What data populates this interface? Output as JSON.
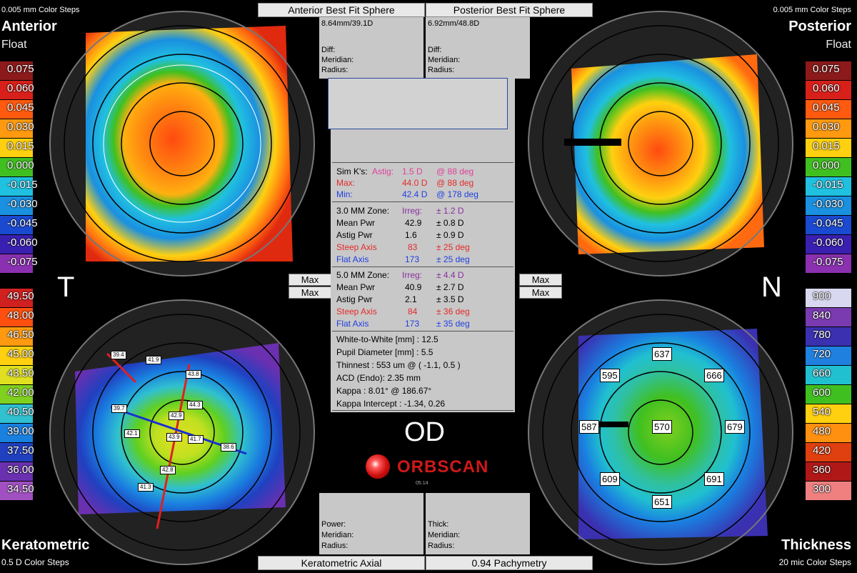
{
  "header": {
    "anterior_bfs_btn": "Anterior Best Fit Sphere",
    "posterior_bfs_btn": "Posterior Best Fit Sphere",
    "anterior_bfs_value": "8.64mm/39.1D",
    "posterior_bfs_value": "6.92mm/48.8D",
    "diff_label": "Diff:",
    "meridian_label": "Meridian:",
    "radius_label": "Radius:"
  },
  "top_left": {
    "steps": "0.005 mm Color Steps",
    "title": "Anterior",
    "subtitle": "Float",
    "scale": [
      "0.075",
      "0.060",
      "0.045",
      "0.030",
      "0.015",
      "0.000",
      "-0.015",
      "-0.030",
      "-0.045",
      "-0.060",
      "-0.075"
    ]
  },
  "top_right": {
    "steps": "0.005 mm Color Steps",
    "title": "Posterior",
    "subtitle": "Float",
    "scale": [
      "0.075",
      "0.060",
      "0.045",
      "0.030",
      "0.015",
      "0.000",
      "-0.015",
      "-0.030",
      "-0.045",
      "-0.060",
      "-0.075"
    ]
  },
  "bottom_left": {
    "title": "Keratometric",
    "steps": "0.5 D Color Steps",
    "scale": [
      "49.50",
      "48.00",
      "46.50",
      "45.00",
      "43.50",
      "42.00",
      "40.50",
      "39.00",
      "37.50",
      "36.00",
      "34.50"
    ],
    "tags": [
      "39.4",
      "41.9",
      "43.8",
      "39.7",
      "44.3",
      "42.9",
      "42.1",
      "43.9",
      "41.7",
      "38.6",
      "42.8",
      "41.3"
    ]
  },
  "bottom_right": {
    "title": "Thickness",
    "steps": "20 mic Color Steps",
    "scale": [
      "900",
      "840",
      "780",
      "720",
      "660",
      "600",
      "540",
      "480",
      "420",
      "360",
      "300"
    ],
    "tags": [
      "637",
      "595",
      "666",
      "587",
      "570",
      "679",
      "609",
      "691",
      "651"
    ]
  },
  "side_letters": {
    "left": "T",
    "right": "N"
  },
  "max_buttons": {
    "label": "Max"
  },
  "footer": {
    "keratometric_axial_btn": "Keratometric Axial",
    "pachymetry_btn": "0.94 Pachymetry",
    "power_label": "Power:",
    "meridian_label": "Meridian:",
    "radius_label": "Radius:",
    "thick_label": "Thick:"
  },
  "eye": "OD",
  "brand": "ORBSCAN",
  "brand_sub": "05.14",
  "summary": {
    "simk_label": "Sim K's:",
    "astig_label": "Astig:",
    "astig_value": "1.5 D",
    "astig_axis": "@ 88 deg",
    "max_label": "Max:",
    "max_value": "44.0 D",
    "max_axis": "@ 88 deg",
    "min_label": "Min:",
    "min_value": "42.4 D",
    "min_axis": "@ 178 deg",
    "zone3": {
      "label": "3.0 MM Zone:",
      "irreg_label": "Irreg:",
      "irreg_value": "± 1.2 D",
      "mean_label": "Mean Pwr",
      "mean_value": "42.9",
      "mean_sd": "± 0.8 D",
      "astig_label": "Astig Pwr",
      "astig_value": "1.6",
      "astig_sd": "± 0.9 D",
      "steep_label": "Steep Axis",
      "steep_value": "83",
      "steep_sd": "± 25 deg",
      "flat_label": "Flat Axis",
      "flat_value": "173",
      "flat_sd": "± 25 deg"
    },
    "zone5": {
      "label": "5.0 MM Zone:",
      "irreg_label": "Irreg:",
      "irreg_value": "± 4.4 D",
      "mean_label": "Mean Pwr",
      "mean_value": "40.9",
      "mean_sd": "± 2.7 D",
      "astig_label": "Astig Pwr",
      "astig_value": "2.1",
      "astig_sd": "± 3.5 D",
      "steep_label": "Steep Axis",
      "steep_value": "84",
      "steep_sd": "± 36 deg",
      "flat_label": "Flat Axis",
      "flat_value": "173",
      "flat_sd": "± 35 deg"
    },
    "wtw": "White-to-White [mm] : 12.5",
    "pupil": "Pupil Diameter [mm] :  5.5",
    "thinnest": "Thinnest : 553 um @ ( -1.1, 0.5 )",
    "acd": "ACD (Endo): 2.35 mm",
    "kappa": "Kappa : 8.01° @ 186.67°",
    "kappa_intercept": "Kappa Intercept : -1.34, 0.26"
  },
  "colors": {
    "float_scale": [
      "#8c1a1a",
      "#d8201a",
      "#ff5a10",
      "#ff9a10",
      "#ffd010",
      "#40c020",
      "#20c0e0",
      "#1a90e0",
      "#1a4ad0",
      "#3a20b0",
      "#8a30b0"
    ],
    "kerat_scale": [
      "#d02020",
      "#ff5010",
      "#ff9a10",
      "#ffd010",
      "#e0e020",
      "#80d020",
      "#30c0d0",
      "#1a80e0",
      "#2040c0",
      "#6a30b0",
      "#a050c0"
    ],
    "thick_scale": [
      "#d8d8f0",
      "#7a3ab0",
      "#3a30b0",
      "#2080e0",
      "#20c0d0",
      "#40c020",
      "#ffd010",
      "#ff9010",
      "#e04010",
      "#b01818",
      "#f08080"
    ]
  }
}
